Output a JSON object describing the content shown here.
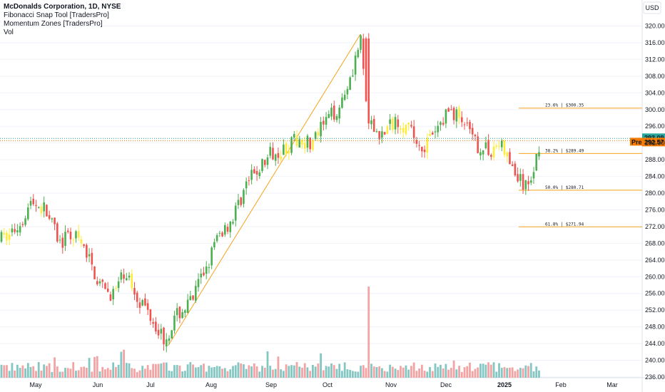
{
  "legend": {
    "title": "McDonalds Corporation, 1D, NYSE",
    "indicator_1": "Fibonacci Snap Tool [TradersPro]",
    "indicator_2": "Momentum Zones [TradersPro]",
    "indicator_3": "Vol"
  },
  "currency_label": "USD",
  "colors": {
    "up": "#4caf50",
    "down": "#ef5350",
    "yellow": "#ffeb3b",
    "fib": "#f7a21b",
    "vol_up": "#84c7c2",
    "vol_down": "#f3a3a3",
    "last_price": "#26a69a",
    "pre": "#f57c00"
  },
  "chart_data": {
    "type": "candlestick",
    "y_ticks": [
      "236.00",
      "240.00",
      "244.00",
      "248.00",
      "252.00",
      "256.00",
      "260.00",
      "264.00",
      "268.00",
      "272.00",
      "276.00",
      "280.00",
      "284.00",
      "288.00",
      "292.00",
      "296.00",
      "300.00",
      "304.00",
      "308.00",
      "312.00",
      "316.00",
      "320.00"
    ],
    "ylim": [
      235,
      322
    ],
    "x_labels": [
      "May",
      "Jun",
      "Jul",
      "Aug",
      "Sep",
      "Oct",
      "Nov",
      "Dec",
      "2025",
      "Feb",
      "Mar"
    ],
    "last_price": {
      "label": "293.09",
      "value": 293.09
    },
    "pre_price": {
      "tag": "Pre",
      "label": "292.57",
      "value": 292.57
    },
    "fib_levels": [
      {
        "label": "23.6% | $300.35",
        "value": 300.35
      },
      {
        "label": "38.2% | $289.49",
        "value": 289.49
      },
      {
        "label": "50.0% | $280.71",
        "value": 280.71
      },
      {
        "label": "61.8% | $271.94",
        "value": 271.94
      }
    ],
    "trend_line": {
      "from": {
        "date": "2024-07-10",
        "value": 243.5
      },
      "to": {
        "date": "2024-10-17",
        "value": 318
      }
    },
    "candle_path": [
      [
        "2024-04-15",
        269
      ],
      [
        "2024-04-22",
        272
      ],
      [
        "2024-04-29",
        278
      ],
      [
        "2024-05-06",
        276
      ],
      [
        "2024-05-13",
        268
      ],
      [
        "2024-05-20",
        270
      ],
      [
        "2024-05-27",
        265
      ],
      [
        "2024-06-03",
        257
      ],
      [
        "2024-06-10",
        256
      ],
      [
        "2024-06-17",
        261
      ],
      [
        "2024-06-24",
        255
      ],
      [
        "2024-07-01",
        251
      ],
      [
        "2024-07-08",
        245
      ],
      [
        "2024-07-15",
        251
      ],
      [
        "2024-07-22",
        254
      ],
      [
        "2024-07-29",
        262
      ],
      [
        "2024-08-05",
        270
      ],
      [
        "2024-08-12",
        274
      ],
      [
        "2024-08-19",
        282
      ],
      [
        "2024-08-26",
        286
      ],
      [
        "2024-09-02",
        290
      ],
      [
        "2024-09-09",
        291
      ],
      [
        "2024-09-16",
        293
      ],
      [
        "2024-09-23",
        292
      ],
      [
        "2024-09-30",
        297
      ],
      [
        "2024-10-07",
        301
      ],
      [
        "2024-10-14",
        311
      ],
      [
        "2024-10-17",
        317
      ],
      [
        "2024-10-21",
        296
      ],
      [
        "2024-10-28",
        294
      ],
      [
        "2024-11-04",
        298
      ],
      [
        "2024-11-11",
        295
      ],
      [
        "2024-11-18",
        291
      ],
      [
        "2024-11-25",
        294
      ],
      [
        "2024-12-02",
        300
      ],
      [
        "2024-12-09",
        298
      ],
      [
        "2024-12-16",
        292
      ],
      [
        "2024-12-23",
        290
      ],
      [
        "2024-12-30",
        292
      ],
      [
        "2025-01-06",
        285
      ],
      [
        "2025-01-13",
        281
      ],
      [
        "2025-01-17",
        286
      ],
      [
        "2025-01-21",
        293
      ]
    ],
    "volume_bars": 204
  }
}
